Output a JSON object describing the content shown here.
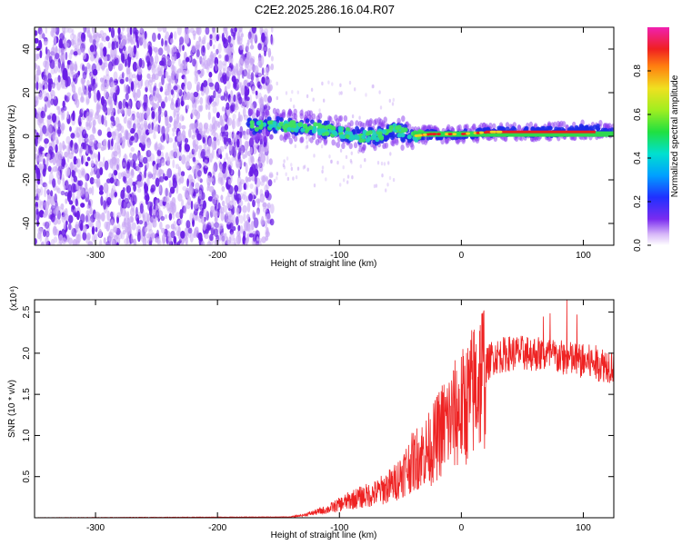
{
  "title": "C2E2.2025.286.16.04.R07",
  "colors": {
    "signal_line": "#ee2222",
    "noise_purple": "#6a1ee6",
    "noise_light": "#c9a8f5"
  },
  "chart_data": [
    {
      "type": "heatmap",
      "name": "spectrogram",
      "xlabel": "Height of straight line (km)",
      "ylabel": "Frequency (Hz)",
      "xlim": [
        -350,
        125
      ],
      "ylim": [
        -50,
        50
      ],
      "xticks": [
        -300,
        -200,
        -100,
        0,
        100
      ],
      "yticks": [
        -40,
        -20,
        0,
        20,
        40
      ],
      "x_tick_labels": [
        "-300",
        "-200",
        "-100",
        "0",
        "100"
      ],
      "y_tick_labels": [
        "-40",
        "-20",
        "0",
        "20",
        "40"
      ],
      "noise_region_x": [
        -350,
        -155
      ],
      "signal_track": [
        {
          "x": -175,
          "f": 5
        },
        {
          "x": -150,
          "f": 5
        },
        {
          "x": -125,
          "f": 4
        },
        {
          "x": -100,
          "f": 2
        },
        {
          "x": -85,
          "f": 0
        },
        {
          "x": -70,
          "f": 0
        },
        {
          "x": -55,
          "f": 3
        },
        {
          "x": -40,
          "f": 0
        },
        {
          "x": -25,
          "f": 1
        },
        {
          "x": 0,
          "f": 1
        },
        {
          "x": 25,
          "f": 2
        },
        {
          "x": 50,
          "f": 2
        },
        {
          "x": 75,
          "f": 2
        },
        {
          "x": 100,
          "f": 3
        },
        {
          "x": 125,
          "f": 3
        }
      ],
      "colorbar": {
        "label": "Normalized spectral amplitude",
        "range": [
          0,
          1
        ],
        "ticks": [
          0,
          0.2,
          0.4,
          0.6,
          0.8
        ],
        "tick_labels": [
          "0.0",
          "0.2",
          "0.4",
          "0.6",
          "0.8"
        ]
      }
    },
    {
      "type": "line",
      "name": "snr",
      "xlabel": "Height of straight line (km)",
      "ylabel": "SNR (10 * v/v)",
      "scale_label": "(x10⁴)",
      "xlim": [
        -350,
        125
      ],
      "ylim": [
        0,
        2.65
      ],
      "xticks": [
        -300,
        -200,
        -100,
        0,
        100
      ],
      "yticks": [
        0.5,
        1.0,
        1.5,
        2.0,
        2.5
      ],
      "x_tick_labels": [
        "-300",
        "-200",
        "-100",
        "0",
        "100"
      ],
      "y_tick_labels": [
        "0.5",
        "1.0",
        "1.5",
        "2.0",
        "2.5"
      ],
      "envelope": [
        {
          "x": -350,
          "v": 0.0
        },
        {
          "x": -140,
          "v": 0.01
        },
        {
          "x": -130,
          "v": 0.03
        },
        {
          "x": -110,
          "v": 0.1
        },
        {
          "x": -90,
          "v": 0.22
        },
        {
          "x": -70,
          "v": 0.3
        },
        {
          "x": -55,
          "v": 0.42
        },
        {
          "x": -45,
          "v": 0.6
        },
        {
          "x": -35,
          "v": 0.75
        },
        {
          "x": -25,
          "v": 0.85
        },
        {
          "x": -15,
          "v": 1.1
        },
        {
          "x": -5,
          "v": 1.25
        },
        {
          "x": 5,
          "v": 1.4
        },
        {
          "x": 15,
          "v": 1.7
        },
        {
          "x": 25,
          "v": 1.95
        },
        {
          "x": 40,
          "v": 2.0
        },
        {
          "x": 60,
          "v": 2.0
        },
        {
          "x": 80,
          "v": 1.95
        },
        {
          "x": 100,
          "v": 1.9
        },
        {
          "x": 125,
          "v": 1.85
        }
      ]
    }
  ]
}
